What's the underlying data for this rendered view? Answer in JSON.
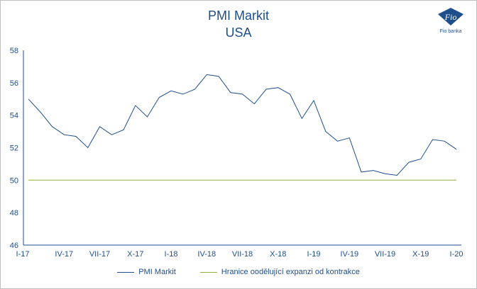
{
  "header": {
    "title": "PMI Markit",
    "subtitle": "USA",
    "logo_text": "Fio banka"
  },
  "colors": {
    "series": "#1f4e8c",
    "threshold": "#8db33a",
    "axis": "#1f4e8c",
    "text": "#1f4e8c"
  },
  "chart_data": {
    "type": "line",
    "title": "PMI Markit",
    "subtitle": "USA",
    "xlabel": "",
    "ylabel": "",
    "ylim": [
      46,
      58
    ],
    "yticks": [
      46,
      48,
      50,
      52,
      54,
      56,
      58
    ],
    "grid": false,
    "legend": "bottom",
    "tick_labels": [
      "I-17",
      "IV-17",
      "VII-17",
      "X-17",
      "I-18",
      "IV-18",
      "VII-18",
      "X-18",
      "I-19",
      "IV-19",
      "VII-19",
      "X-19",
      "I-20"
    ],
    "categories": [
      "I-17",
      "II-17",
      "III-17",
      "IV-17",
      "V-17",
      "VI-17",
      "VII-17",
      "VIII-17",
      "IX-17",
      "X-17",
      "XI-17",
      "XII-17",
      "I-18",
      "II-18",
      "III-18",
      "IV-18",
      "V-18",
      "VI-18",
      "VII-18",
      "VIII-18",
      "IX-18",
      "X-18",
      "XI-18",
      "XII-18",
      "I-19",
      "II-19",
      "III-19",
      "IV-19",
      "V-19",
      "VI-19",
      "VII-19",
      "VIII-19",
      "IX-19",
      "X-19",
      "XI-19",
      "XII-19",
      "I-20"
    ],
    "series": [
      {
        "name": "PMI Markit",
        "values": [
          55.0,
          54.2,
          53.3,
          52.8,
          52.7,
          52.0,
          53.3,
          52.8,
          53.1,
          54.6,
          53.9,
          55.1,
          55.5,
          55.3,
          55.6,
          56.5,
          56.4,
          55.4,
          55.3,
          54.7,
          55.6,
          55.7,
          55.3,
          53.8,
          54.9,
          53.0,
          52.4,
          52.6,
          50.5,
          50.6,
          50.4,
          50.3,
          51.1,
          51.3,
          52.5,
          52.4,
          51.9
        ]
      },
      {
        "name": "Hranice oodělující expanzi od kontrakce",
        "values": [
          50,
          50,
          50,
          50,
          50,
          50,
          50,
          50,
          50,
          50,
          50,
          50,
          50,
          50,
          50,
          50,
          50,
          50,
          50,
          50,
          50,
          50,
          50,
          50,
          50,
          50,
          50,
          50,
          50,
          50,
          50,
          50,
          50,
          50,
          50,
          50,
          50
        ]
      }
    ]
  }
}
